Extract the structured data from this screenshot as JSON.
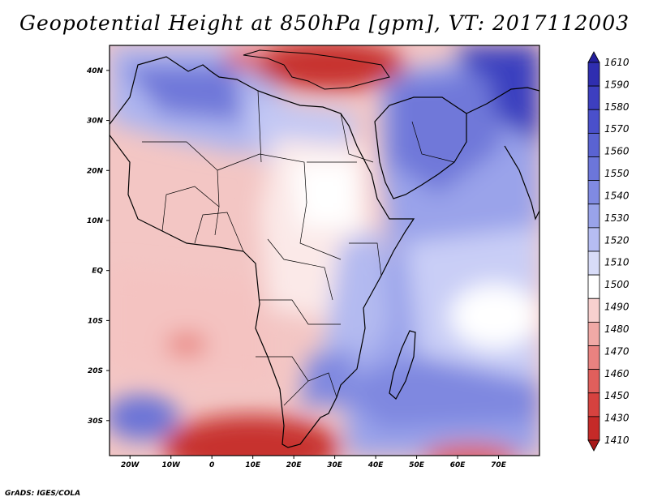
{
  "title": "Geopotential Height at 850hPa [gpm], VT: 2017112003",
  "credit": "GrADS: IGES/COLA",
  "map": {
    "region": "Africa, Arabian Peninsula and Indian Ocean",
    "lon_range": [
      -25,
      80
    ],
    "lat_range": [
      -37,
      45
    ]
  },
  "axes": {
    "lat_ticks": [
      {
        "value": 40,
        "label": "40N"
      },
      {
        "value": 30,
        "label": "30N"
      },
      {
        "value": 20,
        "label": "20N"
      },
      {
        "value": 10,
        "label": "10N"
      },
      {
        "value": 0,
        "label": "EQ"
      },
      {
        "value": -10,
        "label": "10S"
      },
      {
        "value": -20,
        "label": "20S"
      },
      {
        "value": -30,
        "label": "30S"
      }
    ],
    "lon_ticks": [
      {
        "value": -20,
        "label": "20W"
      },
      {
        "value": -10,
        "label": "10W"
      },
      {
        "value": 0,
        "label": "0"
      },
      {
        "value": 10,
        "label": "10E"
      },
      {
        "value": 20,
        "label": "20E"
      },
      {
        "value": 30,
        "label": "30E"
      },
      {
        "value": 40,
        "label": "40E"
      },
      {
        "value": 50,
        "label": "50E"
      },
      {
        "value": 60,
        "label": "60E"
      },
      {
        "value": 70,
        "label": "70E"
      }
    ]
  },
  "colorbar": {
    "labels": [
      "1610",
      "1590",
      "1580",
      "1570",
      "1560",
      "1550",
      "1540",
      "1530",
      "1520",
      "1510",
      "1500",
      "1490",
      "1480",
      "1470",
      "1460",
      "1450",
      "1430",
      "1410"
    ],
    "colors": [
      "#241f9c",
      "#2f2eb0",
      "#3d3fc0",
      "#4a50cb",
      "#5a63d2",
      "#6c76da",
      "#808ae2",
      "#99a3ea",
      "#b6bdf2",
      "#d8dcf8",
      "#ffffff",
      "#f8d0cf",
      "#f1a9a6",
      "#e98280",
      "#e05f5c",
      "#d6423f",
      "#c52a28",
      "#a81818"
    ]
  }
}
